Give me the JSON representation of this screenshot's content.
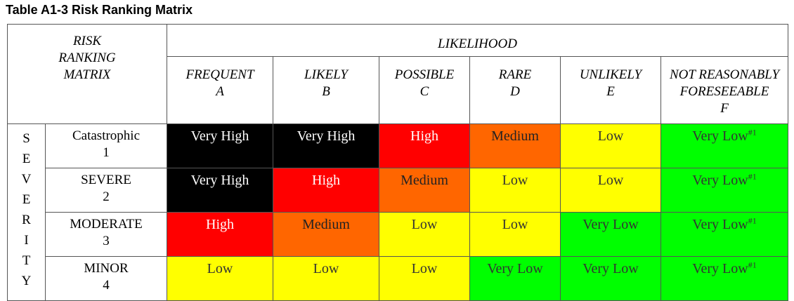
{
  "title": "Table A1-3  Risk Ranking Matrix",
  "corner": [
    "RISK",
    "RANKING",
    "MATRIX"
  ],
  "likelihood_header": "LIKELIHOOD",
  "severity_header": [
    "S",
    "E",
    "V",
    "E",
    "R",
    "I",
    "T",
    "Y"
  ],
  "likelihood_columns": [
    {
      "name": "FREQUENT",
      "code": "A"
    },
    {
      "name": "LIKELY",
      "code": "B"
    },
    {
      "name": "POSSIBLE",
      "code": "C"
    },
    {
      "name": "RARE",
      "code": "D"
    },
    {
      "name": "UNLIKELY",
      "code": "E"
    },
    {
      "name": "NOT REASONABLY",
      "name2": "FORESEEABLE",
      "code": "F"
    }
  ],
  "rows": [
    {
      "severity": "Catastrophic",
      "code": "1",
      "cells": [
        {
          "text": "Very High",
          "level": "vh"
        },
        {
          "text": "Very High",
          "level": "vh"
        },
        {
          "text": "High",
          "level": "hi"
        },
        {
          "text": "Medium",
          "level": "me"
        },
        {
          "text": "Low",
          "level": "lo"
        },
        {
          "text": "Very Low",
          "level": "vl",
          "sup": "#1"
        }
      ]
    },
    {
      "severity": "SEVERE",
      "code": "2",
      "cells": [
        {
          "text": "Very High",
          "level": "vh"
        },
        {
          "text": "High",
          "level": "hi"
        },
        {
          "text": "Medium",
          "level": "me"
        },
        {
          "text": "Low",
          "level": "lo"
        },
        {
          "text": "Low",
          "level": "lo"
        },
        {
          "text": "Very Low",
          "level": "vl",
          "sup": "#1"
        }
      ]
    },
    {
      "severity": "MODERATE",
      "code": "3",
      "cells": [
        {
          "text": "High",
          "level": "hi"
        },
        {
          "text": "Medium",
          "level": "me"
        },
        {
          "text": "Low",
          "level": "lo"
        },
        {
          "text": "Low",
          "level": "lo"
        },
        {
          "text": "Very Low",
          "level": "vl"
        },
        {
          "text": "Very Low",
          "level": "vl",
          "sup": "#1"
        }
      ]
    },
    {
      "severity": "MINOR",
      "code": "4",
      "cells": [
        {
          "text": "Low",
          "level": "lo"
        },
        {
          "text": "Low",
          "level": "lo"
        },
        {
          "text": "Low",
          "level": "lo"
        },
        {
          "text": "Very Low",
          "level": "vl"
        },
        {
          "text": "Very Low",
          "level": "vl"
        },
        {
          "text": "Very Low",
          "level": "vl",
          "sup": "#1"
        }
      ]
    }
  ],
  "colors": {
    "vh": "#000000",
    "hi": "#ff0000",
    "me": "#ff6600",
    "lo": "#ffff00",
    "vl": "#00ff00"
  }
}
